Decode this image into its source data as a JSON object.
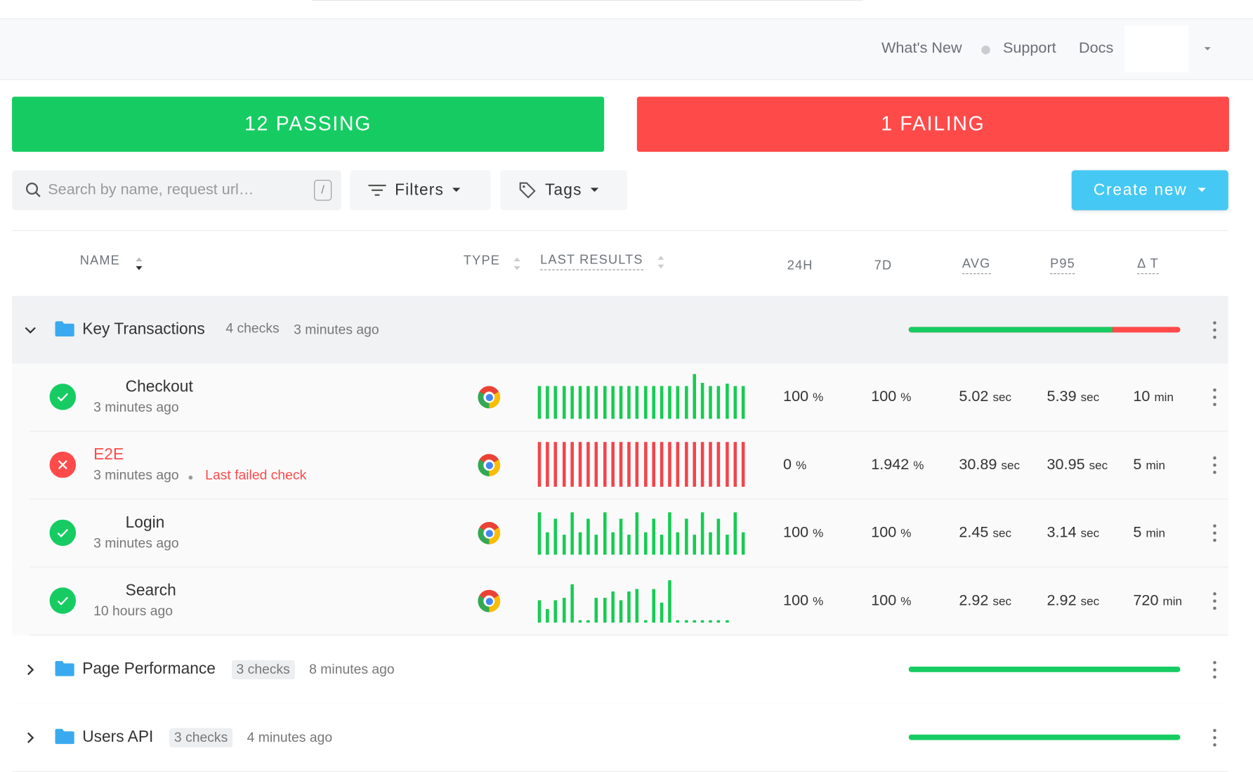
{
  "nav": {
    "links": [
      "What's New",
      "Support",
      "Docs"
    ]
  },
  "summary": {
    "passing": "12 PASSING",
    "failing": "1 FAILING"
  },
  "toolbar": {
    "search_placeholder": "Search by name, request url…",
    "shortcut": "/",
    "filters": "Filters",
    "tags": "Tags",
    "create": "Create new"
  },
  "table": {
    "columns": [
      "NAME",
      "TYPE",
      "LAST RESULTS",
      "24H",
      "7D",
      "AVG",
      "P95",
      "Δ T"
    ],
    "groups": [
      {
        "name": "Key Transactions",
        "count": "4 checks",
        "updated": "3 minutes ago",
        "pass_ratio": 0.75,
        "expanded": true,
        "checks": [
          {
            "name": "Checkout",
            "time": "3 minutes ago",
            "status": "passing",
            "results": [
              0.73,
              0.73,
              0.73,
              0.73,
              0.73,
              0.73,
              0.73,
              0.73,
              0.73,
              0.73,
              0.73,
              0.73,
              0.73,
              0.73,
              0.73,
              0.73,
              0.73,
              0.73,
              0.73,
              1,
              0.8,
              0.73,
              0.73,
              0.78,
              0.73,
              0.73
            ],
            "stats": [
              {
                "value": "100",
                "unit": "%"
              },
              {
                "value": "100",
                "unit": "%"
              },
              {
                "value": "5.02",
                "unit": "sec"
              },
              {
                "value": "5.39",
                "unit": "sec"
              },
              {
                "value": "10",
                "unit": "min"
              }
            ]
          },
          {
            "name": "E2E",
            "time": "3 minutes ago",
            "note": "Last failed check",
            "status": "failing",
            "results": [
              1,
              1,
              1,
              1,
              1,
              1,
              1,
              1,
              1,
              1,
              1,
              1,
              1,
              1,
              1,
              1,
              1,
              1,
              1,
              1,
              1,
              1,
              1,
              1,
              1,
              1
            ],
            "stats": [
              {
                "value": "0",
                "unit": "%"
              },
              {
                "value": "1.942",
                "unit": "%"
              },
              {
                "value": "30.89",
                "unit": "sec"
              },
              {
                "value": "30.95",
                "unit": "sec"
              },
              {
                "value": "5",
                "unit": "min"
              }
            ]
          },
          {
            "name": "Login",
            "time": "3 minutes ago",
            "status": "passing",
            "results": [
              0.95,
              0.5,
              0.8,
              0.45,
              0.95,
              0.5,
              0.8,
              0.45,
              0.95,
              0.5,
              0.8,
              0.45,
              0.95,
              0.5,
              0.8,
              0.45,
              0.95,
              0.5,
              0.8,
              0.45,
              0.95,
              0.5,
              0.8,
              0.45,
              0.95,
              0.5
            ],
            "stats": [
              {
                "value": "100",
                "unit": "%"
              },
              {
                "value": "100",
                "unit": "%"
              },
              {
                "value": "2.45",
                "unit": "sec"
              },
              {
                "value": "3.14",
                "unit": "sec"
              },
              {
                "value": "5",
                "unit": "min"
              }
            ]
          },
          {
            "name": "Search",
            "time": "10 hours ago",
            "status": "passing",
            "results": [
              0.5,
              0.3,
              0.5,
              0.55,
              0.85,
              0.05,
              0.05,
              0.55,
              0.55,
              0.7,
              0.5,
              0.7,
              0.75,
              0.05,
              0.75,
              0.45,
              0.95,
              0.05,
              0.05,
              0.05,
              0.05,
              0.05,
              0.05,
              0.05
            ],
            "stats": [
              {
                "value": "100",
                "unit": "%"
              },
              {
                "value": "100",
                "unit": "%"
              },
              {
                "value": "2.92",
                "unit": "sec"
              },
              {
                "value": "2.92",
                "unit": "sec"
              },
              {
                "value": "720",
                "unit": "min"
              }
            ]
          }
        ]
      },
      {
        "name": "Page Performance",
        "count": "3 checks",
        "updated": "8 minutes ago",
        "pass_ratio": 1,
        "expanded": false,
        "checks": []
      },
      {
        "name": "Users API",
        "count": "3 checks",
        "updated": "4 minutes ago",
        "pass_ratio": 1,
        "expanded": false,
        "checks": []
      }
    ]
  }
}
